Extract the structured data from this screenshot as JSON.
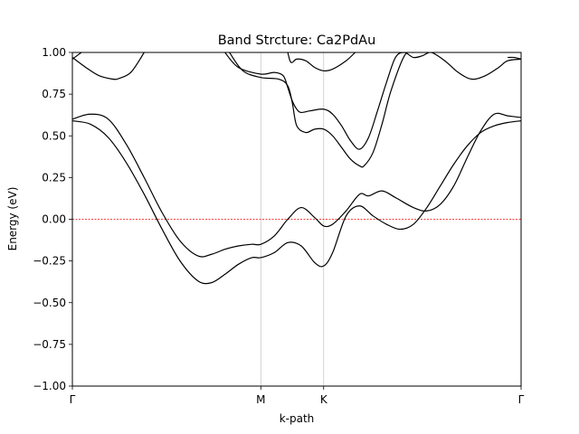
{
  "chart_data": {
    "type": "line",
    "title": "Band Strcture: Ca2PdAu",
    "xlabel": "k-path",
    "ylabel": "Energy (eV)",
    "ylim": [
      -1.0,
      1.0
    ],
    "xlim": [
      0,
      1.0
    ],
    "yticks": [
      -1.0,
      -0.75,
      -0.5,
      -0.25,
      0.0,
      0.25,
      0.5,
      0.75,
      1.0
    ],
    "ytick_labels": [
      "−1.00",
      "−0.75",
      "−0.50",
      "−0.25",
      "0.00",
      "0.25",
      "0.50",
      "0.75",
      "1.00"
    ],
    "high_symmetry_points": [
      {
        "label": "Γ",
        "x": 0.0
      },
      {
        "label": "M",
        "x": 0.42
      },
      {
        "label": "K",
        "x": 0.56
      },
      {
        "label": "Γ",
        "x": 1.0
      }
    ],
    "fermi_level": 0.0,
    "fermi_color": "#ff0000",
    "vertical_line_color": "#c8c8c8",
    "band_color": "#000000",
    "series": [
      {
        "x": [
          0,
          0.04,
          0.08,
          0.12,
          0.16,
          0.2,
          0.24,
          0.28,
          0.31,
          0.34,
          0.37,
          0.4,
          0.42,
          0.45,
          0.48,
          0.51,
          0.54,
          0.56,
          0.58,
          0.61,
          0.64,
          0.67,
          0.7,
          0.73,
          0.76,
          0.79,
          0.82,
          0.85,
          0.88,
          0.91,
          0.94,
          0.97,
          1.0
        ],
        "y": [
          0.59,
          0.57,
          0.49,
          0.34,
          0.15,
          -0.06,
          -0.25,
          -0.37,
          -0.38,
          -0.33,
          -0.27,
          -0.23,
          -0.23,
          -0.2,
          -0.14,
          -0.16,
          -0.26,
          -0.28,
          -0.2,
          0.02,
          0.08,
          0.02,
          -0.03,
          -0.06,
          -0.03,
          0.07,
          0.2,
          0.33,
          0.44,
          0.52,
          0.56,
          0.58,
          0.59
        ]
      },
      {
        "x": [
          0,
          0.04,
          0.08,
          0.12,
          0.16,
          0.2,
          0.24,
          0.28,
          0.31,
          0.34,
          0.37,
          0.4,
          0.42,
          0.45,
          0.48,
          0.51,
          0.54,
          0.56,
          0.58,
          0.61,
          0.64,
          0.66,
          0.69,
          0.72,
          0.76,
          0.79,
          0.82,
          0.85,
          0.88,
          0.91,
          0.94,
          0.97,
          1.0
        ],
        "y": [
          0.6,
          0.63,
          0.6,
          0.45,
          0.25,
          0.04,
          -0.13,
          -0.22,
          -0.21,
          -0.18,
          -0.16,
          -0.15,
          -0.15,
          -0.1,
          0.0,
          0.07,
          0.01,
          -0.04,
          -0.03,
          0.05,
          0.15,
          0.14,
          0.17,
          0.13,
          0.07,
          0.05,
          0.09,
          0.2,
          0.37,
          0.53,
          0.63,
          0.62,
          0.61
        ]
      },
      {
        "x": [
          0,
          0.03,
          0.06,
          0.09,
          0.1
        ],
        "y": [
          0.97,
          0.91,
          0.86,
          0.84,
          0.84
        ]
      },
      {
        "x": [
          0.1,
          0.13,
          0.16
        ],
        "y": [
          0.84,
          0.88,
          1.0
        ]
      },
      {
        "x": [
          0.35,
          0.38,
          0.42,
          0.46,
          0.48,
          0.49,
          0.5,
          0.52,
          0.54,
          0.56,
          0.58,
          0.6,
          0.62,
          0.64,
          0.65,
          0.67,
          0.69,
          0.71,
          0.74,
          0.76
        ],
        "y": [
          1.0,
          0.89,
          0.85,
          0.84,
          0.8,
          0.7,
          0.56,
          0.52,
          0.54,
          0.54,
          0.5,
          0.43,
          0.36,
          0.32,
          0.32,
          0.4,
          0.57,
          0.77,
          0.98,
          1.0
        ]
      },
      {
        "x": [
          0.34,
          0.37,
          0.42,
          0.45,
          0.47,
          0.48,
          0.49,
          0.5,
          0.51,
          0.53,
          0.56,
          0.58,
          0.6,
          0.62,
          0.64,
          0.66,
          0.68,
          0.7,
          0.72,
          0.74,
          0.76,
          0.78,
          0.8,
          0.83,
          0.86,
          0.89,
          0.92,
          0.95,
          0.97,
          1.0
        ],
        "y": [
          1.0,
          0.91,
          0.87,
          0.88,
          0.86,
          0.79,
          0.71,
          0.66,
          0.64,
          0.65,
          0.66,
          0.63,
          0.56,
          0.47,
          0.42,
          0.49,
          0.65,
          0.82,
          0.97,
          1.0,
          0.97,
          0.98,
          1.0,
          0.95,
          0.88,
          0.84,
          0.86,
          0.91,
          0.95,
          0.96
        ]
      },
      {
        "x": [
          0.48,
          0.485,
          0.49,
          0.5,
          0.52,
          0.54,
          0.56,
          0.58,
          0.61,
          0.63
        ],
        "y": [
          1.0,
          0.95,
          0.94,
          0.96,
          0.95,
          0.91,
          0.89,
          0.9,
          0.95,
          1.0
        ]
      },
      {
        "x": [
          0.0,
          0.01,
          0.02
        ],
        "y": [
          0.96,
          0.98,
          1.0
        ]
      },
      {
        "x": [
          0.97,
          0.985,
          1.0
        ],
        "y": [
          0.97,
          0.97,
          0.96
        ]
      }
    ]
  }
}
